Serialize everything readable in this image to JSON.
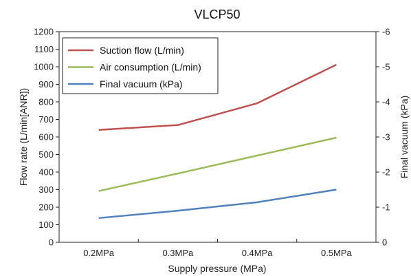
{
  "chart_data": {
    "type": "line",
    "title": "VLCP50",
    "xlabel": "Supply pressure (MPa)",
    "ylabel": "Flow rate (L/min[ANR])",
    "y2label": "Final vacuum (kPa)",
    "categories": [
      "0.2MPa",
      "0.3MPa",
      "0.4MPa",
      "0.5MPa"
    ],
    "ylim": [
      0,
      1200
    ],
    "yticks": [
      0,
      100,
      200,
      300,
      400,
      500,
      600,
      700,
      800,
      900,
      1000,
      1100,
      1200
    ],
    "y2lim": [
      0,
      -6
    ],
    "y2ticks": [
      0,
      -1,
      -2,
      -3,
      -4,
      -5,
      -6
    ],
    "grid": false,
    "legend_position": "top-left",
    "series": [
      {
        "name": "Suction flow  (L/min)",
        "axis": "left",
        "color": "#c0504d",
        "values": [
          640,
          668,
          792,
          1012
        ]
      },
      {
        "name": "Air consumption (L/min)",
        "axis": "left",
        "color": "#9bbb59",
        "values": [
          292,
          392,
          494,
          596
        ]
      },
      {
        "name": "Final vacuum  (kPa)",
        "axis": "right",
        "color": "#4f81bd",
        "values": [
          -0.69,
          -0.9,
          -1.14,
          -1.5
        ]
      }
    ]
  }
}
